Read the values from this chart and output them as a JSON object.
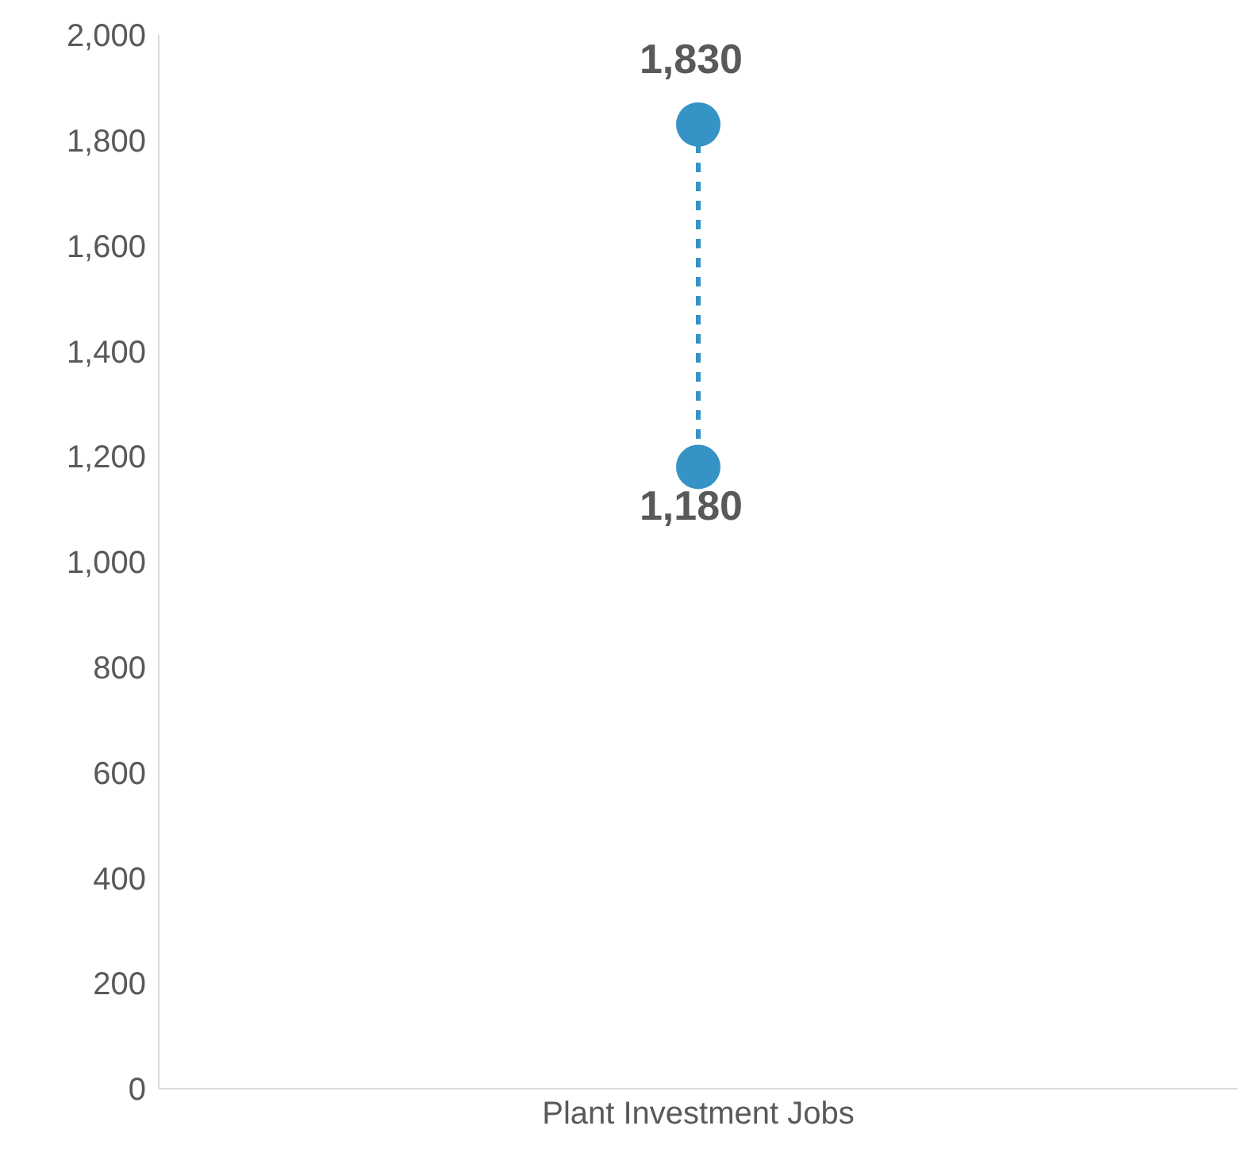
{
  "chart_data": {
    "type": "line",
    "categories": [
      "Plant Investment Jobs"
    ],
    "series": [
      {
        "x": [
          "Plant Investment Jobs",
          "Plant Investment Jobs"
        ],
        "values": [
          1830,
          1180
        ],
        "value_labels": [
          "1,830",
          "1,180"
        ],
        "color": "#3593c6"
      }
    ],
    "marker": "circle",
    "line_style": "dashed",
    "grid": false,
    "legend": false,
    "ylim": [
      0,
      2000
    ],
    "yticks": [
      {
        "value": 0,
        "label": "0"
      },
      {
        "value": 200,
        "label": "200"
      },
      {
        "value": 400,
        "label": "400"
      },
      {
        "value": 600,
        "label": "600"
      },
      {
        "value": 800,
        "label": "800"
      },
      {
        "value": 1000,
        "label": "1,000"
      },
      {
        "value": 1200,
        "label": "1,200"
      },
      {
        "value": 1400,
        "label": "1,400"
      },
      {
        "value": 1600,
        "label": "1,600"
      },
      {
        "value": 1800,
        "label": "1,800"
      },
      {
        "value": 2000,
        "label": "2,000"
      }
    ]
  }
}
